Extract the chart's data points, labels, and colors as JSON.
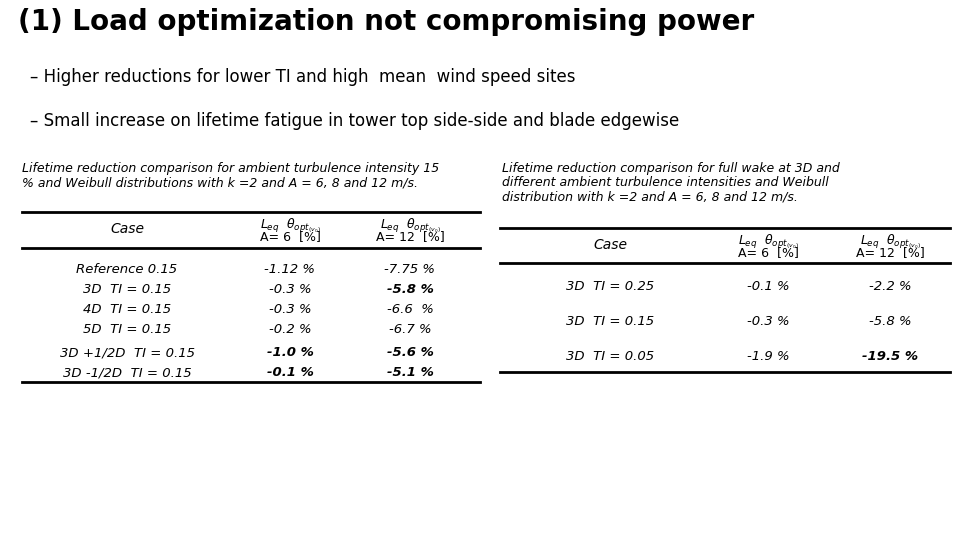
{
  "title": "(1) Load optimization not compromising power",
  "bullet1": "– Higher reductions for lower TI and high  mean  wind speed sites",
  "bullet2": "– Small increase on lifetime fatigue in tower top side-side and blade edgewise",
  "caption_left_1": "Lifetime reduction comparison for ambient turbulence intensity 15",
  "caption_left_2": "% and Weibull distributions with k =2 and A = 6, 8 and 12 m/s.",
  "caption_right_1": "Lifetime reduction comparison for full wake at 3D and",
  "caption_right_2": "different ambient turbulence intensities and Weibull",
  "caption_right_3": "distribution with k =2 and A = 6, 8 and 12 m/s.",
  "table1_rows": [
    [
      "Reference 0.15",
      "-1.12 %",
      "-7.75 %",
      false,
      false
    ],
    [
      "3D  TI = 0.15",
      "-0.3 %",
      "-5.8 %",
      false,
      true
    ],
    [
      "4D  TI = 0.15",
      "-0.3 %",
      "-6.6  %",
      false,
      false
    ],
    [
      "5D  TI = 0.15",
      "-0.2 %",
      "-6.7 %",
      false,
      false
    ],
    [
      "3D +1/2D  TI = 0.15",
      "-1.0 %",
      "-5.6 %",
      true,
      true
    ],
    [
      "3D -1/2D  TI = 0.15",
      "-0.1 %",
      "-5.1 %",
      true,
      true
    ]
  ],
  "table2_rows": [
    [
      "3D  TI = 0.25",
      "-0.1 %",
      "-2.2 %",
      false,
      false
    ],
    [
      "3D  TI = 0.15",
      "-0.3 %",
      "-5.8 %",
      false,
      false
    ],
    [
      "3D  TI = 0.05",
      "-1.9 %",
      "-19.5 %",
      false,
      true
    ]
  ],
  "bg_color": "#ffffff"
}
